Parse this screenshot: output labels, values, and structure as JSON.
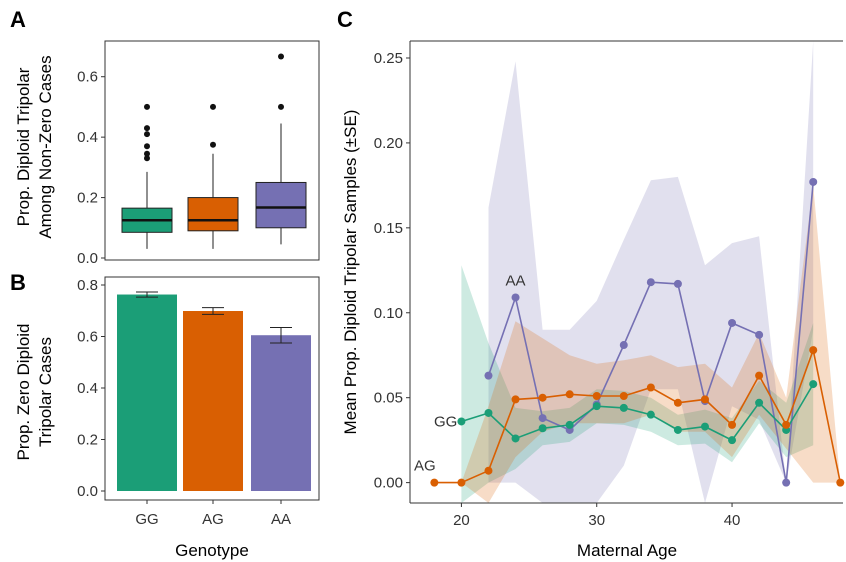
{
  "chart_data": [
    {
      "panel": "A",
      "type": "box",
      "ylabel": [
        "Prop. Diploid Tripolar",
        "Among Non-Zero Cases"
      ],
      "ylim": [
        0,
        0.7
      ],
      "yticks": [
        0.0,
        0.2,
        0.4,
        0.6
      ],
      "ytick_labels": [
        "0.0",
        "0.2",
        "0.4",
        "0.6"
      ],
      "grid": false,
      "categories": [
        "GG",
        "AG",
        "AA"
      ],
      "colors": [
        "#1b9e77",
        "#d95f02",
        "#7570b3"
      ],
      "boxes": [
        {
          "name": "GG",
          "whisker_low": 0.03,
          "q1": 0.085,
          "median": 0.125,
          "q3": 0.165,
          "whisker_high": 0.285,
          "outliers": [
            0.5,
            0.43,
            0.41,
            0.37,
            0.345,
            0.33
          ]
        },
        {
          "name": "AG",
          "whisker_low": 0.03,
          "q1": 0.09,
          "median": 0.125,
          "q3": 0.2,
          "whisker_high": 0.345,
          "outliers": [
            0.5,
            0.375
          ]
        },
        {
          "name": "AA",
          "whisker_low": 0.045,
          "q1": 0.1,
          "median": 0.167,
          "q3": 0.25,
          "whisker_high": 0.445,
          "outliers": [
            0.667,
            0.5
          ]
        }
      ]
    },
    {
      "panel": "B",
      "type": "bar",
      "ylabel": [
        "Prop. Zero Diploid",
        "Tripolar Cases"
      ],
      "xlabel": "Genotype",
      "ylim": [
        0,
        0.8
      ],
      "yticks": [
        0.0,
        0.2,
        0.4,
        0.6,
        0.8
      ],
      "ytick_labels": [
        "0.0",
        "0.2",
        "0.4",
        "0.6",
        "0.8"
      ],
      "grid": false,
      "categories": [
        "GG",
        "AG",
        "AA"
      ],
      "colors": [
        "#1b9e77",
        "#d95f02",
        "#7570b3"
      ],
      "values": [
        0.763,
        0.699,
        0.605
      ],
      "errors": [
        0.01,
        0.013,
        0.03
      ]
    },
    {
      "panel": "C",
      "type": "line",
      "ylabel": "Mean Prop. Diploid Tripolar Samples (±SE)",
      "xlabel": "Maternal Age",
      "xlim": [
        16.2,
        48.2
      ],
      "ylim": [
        -0.012,
        0.26
      ],
      "xticks": [
        20,
        30,
        40
      ],
      "xtick_labels": [
        "20",
        "30",
        "40"
      ],
      "yticks": [
        0,
        0.05,
        0.1,
        0.15,
        0.2,
        0.25
      ],
      "ytick_labels": [
        "0.00",
        "0.05",
        "0.10",
        "0.15",
        "0.20",
        "0.25"
      ],
      "grid": false,
      "series": [
        {
          "name": "AA",
          "color": "#7570b3",
          "x": [
            22,
            24,
            26,
            28,
            30,
            32,
            34,
            36,
            38,
            40,
            42,
            44,
            46
          ],
          "y": [
            0.063,
            0.109,
            0.038,
            0.031,
            0.046,
            0.081,
            0.118,
            0.117,
            0.048,
            0.094,
            0.087,
            0.0,
            0.177
          ],
          "se_low": [
            0.0,
            0.0,
            -0.03,
            -0.03,
            -0.015,
            0.01,
            0.055,
            0.055,
            -0.03,
            0.045,
            0.037,
            0.0,
            0.09
          ],
          "se_high": [
            0.162,
            0.248,
            0.09,
            0.09,
            0.107,
            0.143,
            0.178,
            0.18,
            0.128,
            0.141,
            0.145,
            0.0,
            0.264
          ]
        },
        {
          "name": "GG",
          "color": "#1b9e77",
          "x": [
            20,
            22,
            24,
            26,
            28,
            30,
            32,
            34,
            36,
            38,
            40,
            42,
            44,
            46
          ],
          "y": [
            0.036,
            0.041,
            0.026,
            0.032,
            0.034,
            0.045,
            0.044,
            0.04,
            0.031,
            0.033,
            0.025,
            0.047,
            0.031,
            0.058
          ],
          "se_low": [
            -0.057,
            0.0,
            0.008,
            0.022,
            0.024,
            0.035,
            0.034,
            0.03,
            0.022,
            0.023,
            0.012,
            0.035,
            0.015,
            0.022
          ],
          "se_high": [
            0.128,
            0.082,
            0.044,
            0.042,
            0.044,
            0.055,
            0.054,
            0.05,
            0.04,
            0.043,
            0.038,
            0.06,
            0.047,
            0.094
          ]
        },
        {
          "name": "AG",
          "color": "#d95f02",
          "x": [
            18,
            20,
            22,
            24,
            26,
            28,
            30,
            32,
            34,
            36,
            38,
            40,
            42,
            44,
            46,
            48
          ],
          "y": [
            0.0,
            0.0,
            0.007,
            0.049,
            0.05,
            0.052,
            0.051,
            0.051,
            0.056,
            0.047,
            0.049,
            0.034,
            0.063,
            0.034,
            0.078,
            0.0
          ],
          "se_low": [
            0.0,
            0.0,
            -0.03,
            0.015,
            0.03,
            0.035,
            0.035,
            0.035,
            0.04,
            0.03,
            0.03,
            0.015,
            0.04,
            0.02,
            0.0,
            0.0
          ],
          "se_high": [
            0.0,
            0.0,
            0.045,
            0.095,
            0.085,
            0.075,
            0.07,
            0.072,
            0.075,
            0.068,
            0.07,
            0.056,
            0.088,
            0.05,
            0.175,
            0.0
          ]
        }
      ],
      "labels": [
        {
          "text": "AA",
          "x": 24,
          "y": 0.119
        },
        {
          "text": "GG",
          "x": 19.7,
          "y": 0.036
        },
        {
          "text": "AG",
          "x": 17.3,
          "y": 0.01
        }
      ]
    }
  ],
  "panel_letters": [
    "A",
    "B",
    "C"
  ]
}
